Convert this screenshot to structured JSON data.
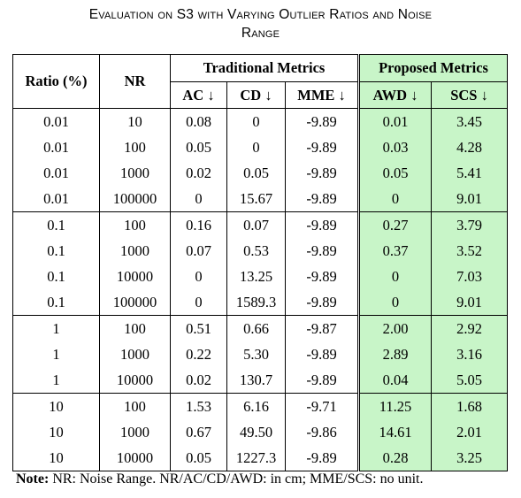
{
  "caption": {
    "line1": "Evaluation on S3 with Varying Outlier Ratios and Noise",
    "line2": "Range"
  },
  "headers": {
    "ratio": "Ratio (%)",
    "nr": "NR",
    "traditional": "Traditional Metrics",
    "proposed": "Proposed Metrics",
    "ac": "AC ↓",
    "cd": "CD ↓",
    "mme": "MME ↓",
    "awd": "AWD ↓",
    "scs": "SCS ↓"
  },
  "rows": [
    [
      "0.01",
      "10",
      "0.08",
      "0",
      "-9.89",
      "0.01",
      "3.45"
    ],
    [
      "0.01",
      "100",
      "0.05",
      "0",
      "-9.89",
      "0.03",
      "4.28"
    ],
    [
      "0.01",
      "1000",
      "0.02",
      "0.05",
      "-9.89",
      "0.05",
      "5.41"
    ],
    [
      "0.01",
      "100000",
      "0",
      "15.67",
      "-9.89",
      "0",
      "9.01"
    ],
    [
      "0.1",
      "100",
      "0.16",
      "0.07",
      "-9.89",
      "0.27",
      "3.79"
    ],
    [
      "0.1",
      "1000",
      "0.07",
      "0.53",
      "-9.89",
      "0.37",
      "3.52"
    ],
    [
      "0.1",
      "10000",
      "0",
      "13.25",
      "-9.89",
      "0",
      "7.03"
    ],
    [
      "0.1",
      "100000",
      "0",
      "1589.3",
      "-9.89",
      "0",
      "9.01"
    ],
    [
      "1",
      "100",
      "0.51",
      "0.66",
      "-9.87",
      "2.00",
      "2.92"
    ],
    [
      "1",
      "1000",
      "0.22",
      "5.30",
      "-9.89",
      "2.89",
      "3.16"
    ],
    [
      "1",
      "10000",
      "0.02",
      "130.7",
      "-9.89",
      "0.04",
      "5.05"
    ],
    [
      "10",
      "100",
      "1.53",
      "6.16",
      "-9.71",
      "11.25",
      "1.68"
    ],
    [
      "10",
      "1000",
      "0.67",
      "49.50",
      "-9.86",
      "14.61",
      "2.01"
    ],
    [
      "10",
      "10000",
      "0.05",
      "1227.3",
      "-9.89",
      "0.28",
      "3.25"
    ]
  ],
  "note": {
    "label": "Note:",
    "text": " NR: Noise Range. NR/AC/CD/AWD: in cm; MME/SCS: no unit."
  },
  "colors": {
    "proposed_background": "#c8f5c8"
  }
}
